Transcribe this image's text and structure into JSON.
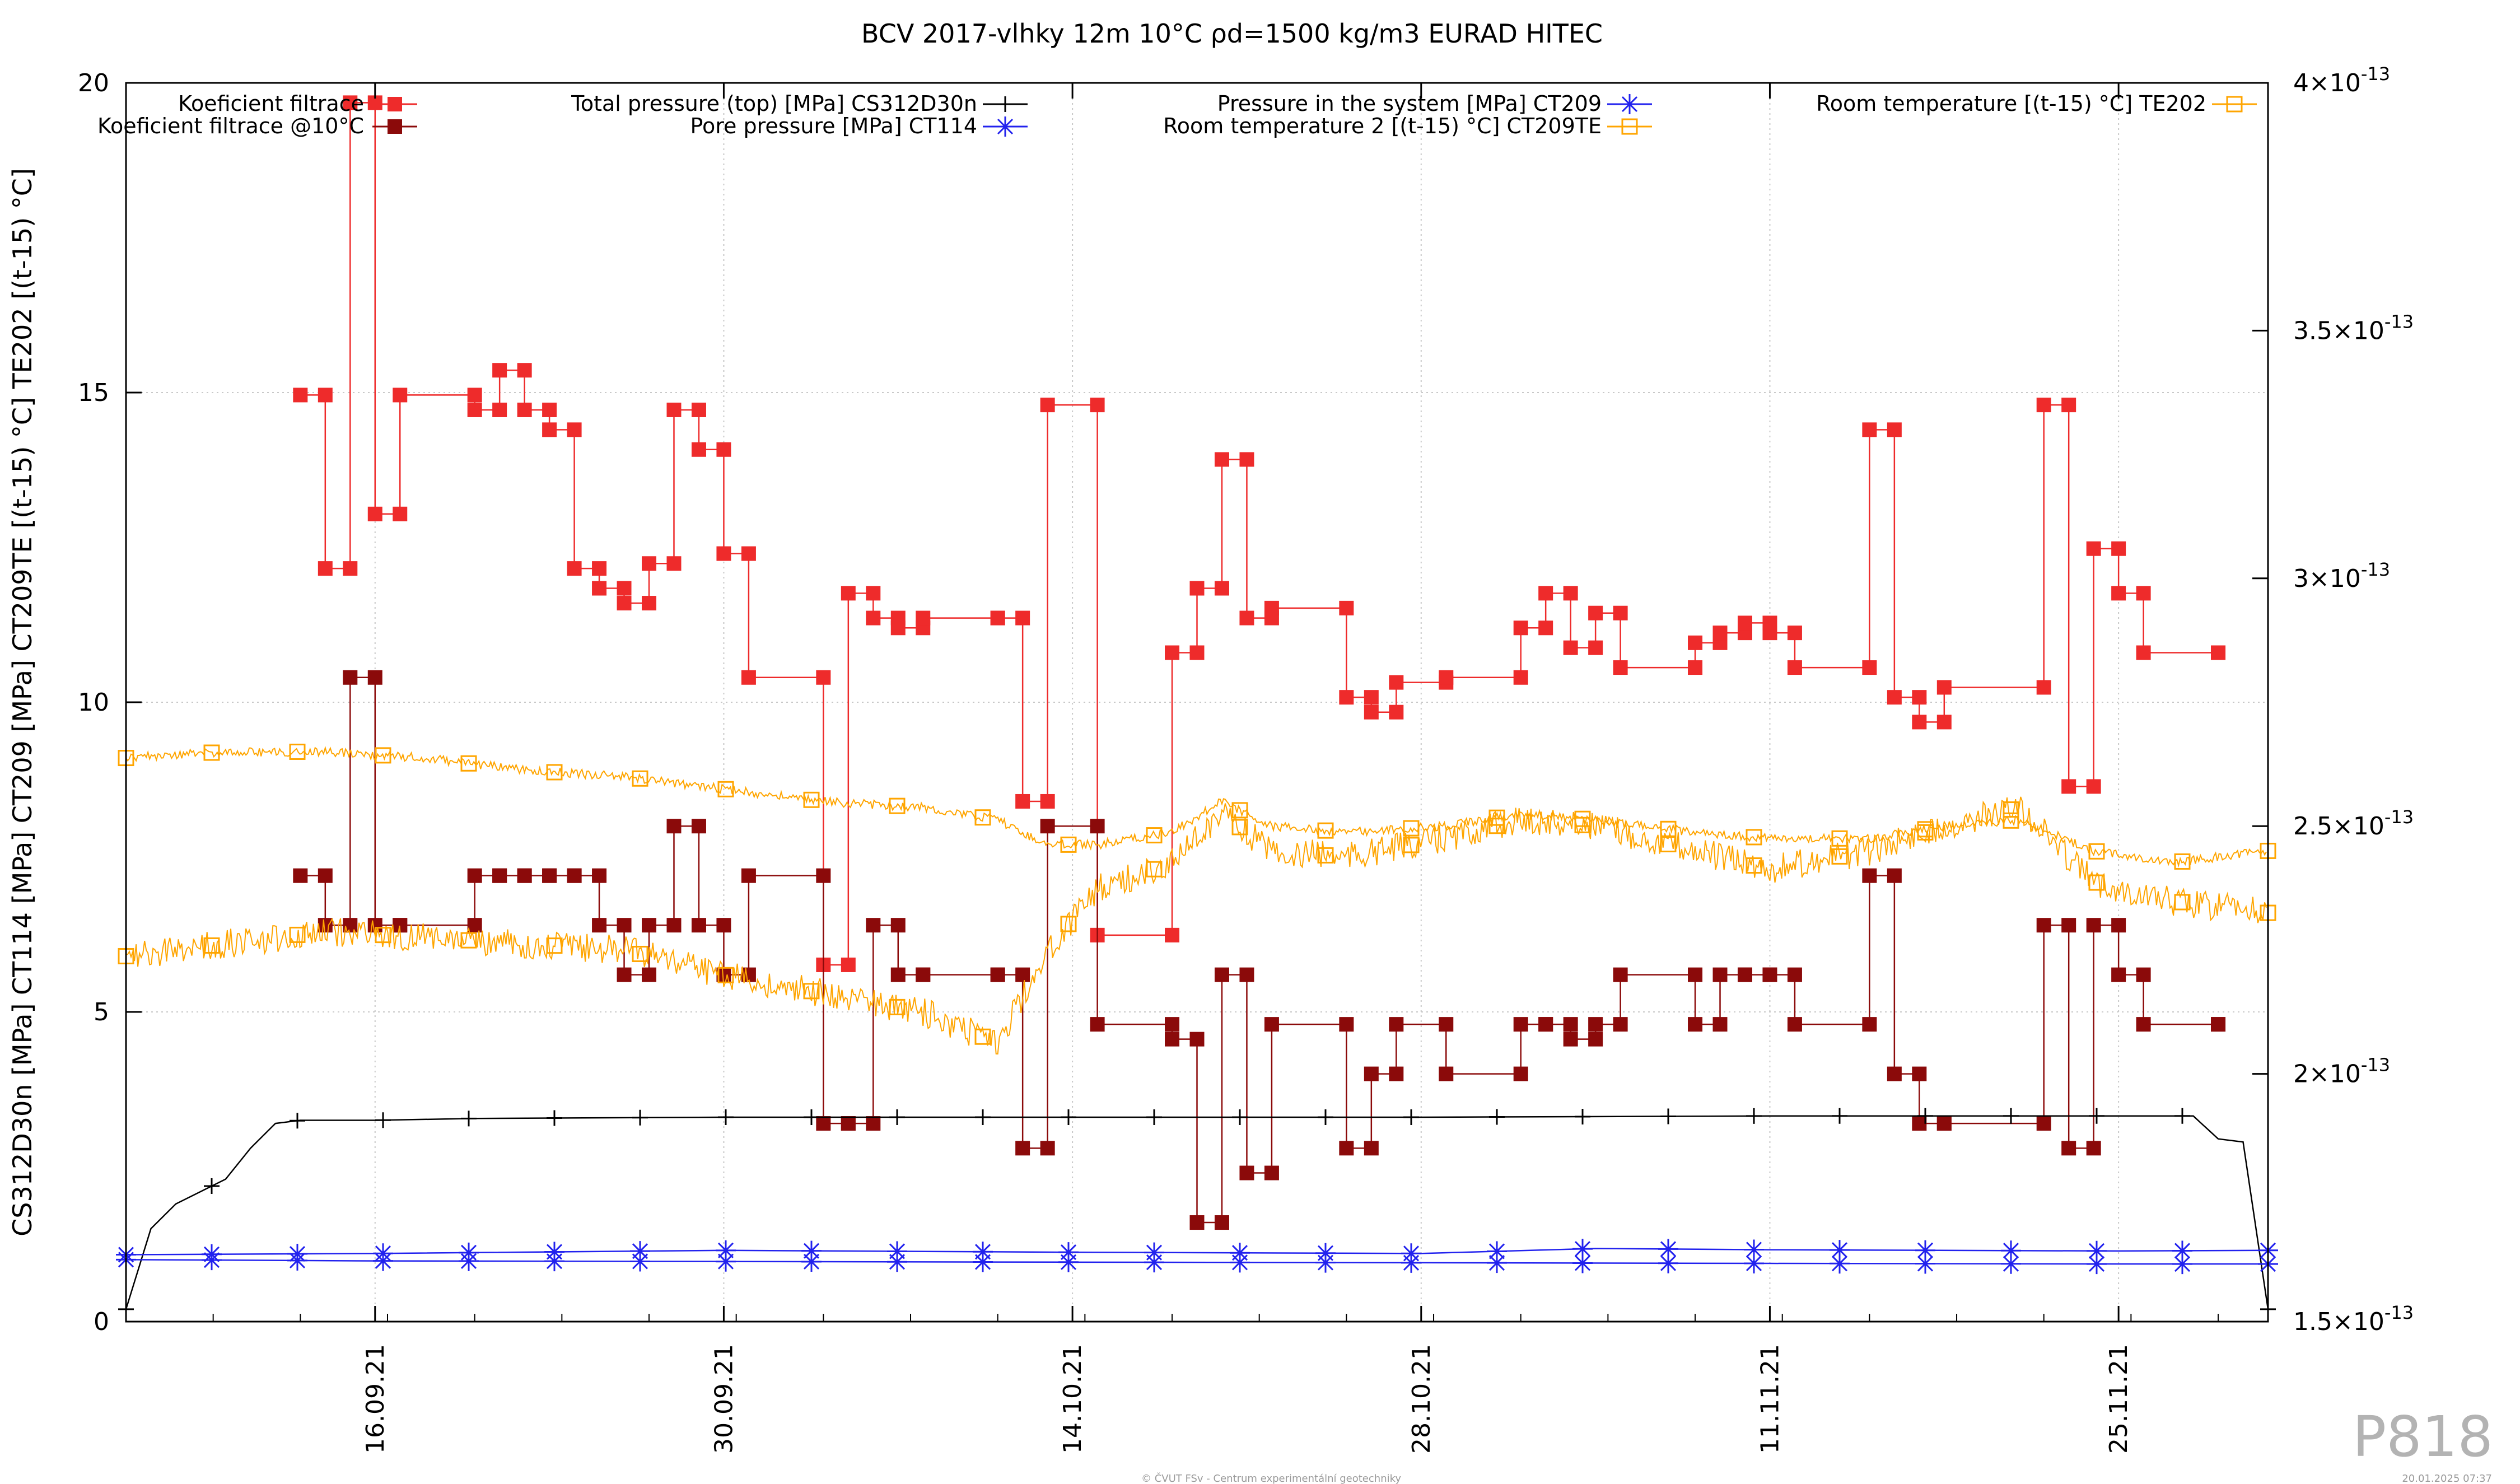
{
  "chart_data": {
    "type": "line",
    "title": "BCV 2017-vlhky 12m 10°C ρd=1500 kg/m3 EURAD HITEC",
    "ylabel_left": "CS312D30n [MPa] CT114 [MPa] CT209 [MPa] CT209TE [(t-15) °C] TE202 [(t-15) °C]",
    "ylim_left": [
      0,
      20
    ],
    "yticks_left": [
      "0",
      "5",
      "10",
      "15",
      "20"
    ],
    "ylim_right": [
      1.5e-13,
      4e-13
    ],
    "yticks_right": [
      {
        "value": 1.5e-13,
        "mant": "1.5×10",
        "exp": "-13"
      },
      {
        "value": 2e-13,
        "mant": "2×10",
        "exp": "-13"
      },
      {
        "value": 2.5e-13,
        "mant": "2.5×10",
        "exp": "-13"
      },
      {
        "value": 3e-13,
        "mant": "3×10",
        "exp": "-13"
      },
      {
        "value": 3.5e-13,
        "mant": "3.5×10",
        "exp": "-13"
      },
      {
        "value": 4e-13,
        "mant": "4×10",
        "exp": "-13"
      }
    ],
    "xlim": [
      "2021-09-06",
      "2021-12-01"
    ],
    "xticks": [
      {
        "date": "2021-09-16",
        "label": "16.09.21"
      },
      {
        "date": "2021-09-30",
        "label": "30.09.21"
      },
      {
        "date": "2021-10-14",
        "label": "14.10.21"
      },
      {
        "date": "2021-10-28",
        "label": "28.10.21"
      },
      {
        "date": "2021-11-11",
        "label": "11.11.21"
      },
      {
        "date": "2021-11-25",
        "label": "25.11.21"
      }
    ],
    "grid": true,
    "legend_position": "top",
    "series": [
      {
        "name": "Koeficient filtrace",
        "axis": "right",
        "color": "#ee2b2b",
        "marker": "filled-square",
        "x": [
          "2021-09-13",
          "2021-09-14",
          "2021-09-15",
          "2021-09-16",
          "2021-09-17",
          "2021-09-20",
          "2021-09-21",
          "2021-09-22",
          "2021-09-23",
          "2021-09-24",
          "2021-09-25",
          "2021-09-26",
          "2021-09-27",
          "2021-09-28",
          "2021-09-29",
          "2021-09-30",
          "2021-10-01",
          "2021-10-04",
          "2021-10-05",
          "2021-10-06",
          "2021-10-07",
          "2021-10-08",
          "2021-10-11",
          "2021-10-12",
          "2021-10-13",
          "2021-10-15",
          "2021-10-18",
          "2021-10-19",
          "2021-10-20",
          "2021-10-21",
          "2021-10-22",
          "2021-10-25",
          "2021-10-26",
          "2021-10-27",
          "2021-10-29",
          "2021-11-01",
          "2021-11-02",
          "2021-11-03",
          "2021-11-04",
          "2021-11-05",
          "2021-11-08",
          "2021-11-09",
          "2021-11-10",
          "2021-11-11",
          "2021-11-12",
          "2021-11-15",
          "2021-11-16",
          "2021-11-17",
          "2021-11-18",
          "2021-11-22",
          "2021-11-23",
          "2021-11-24",
          "2021-11-25",
          "2021-11-26",
          "2021-11-29"
        ],
        "y": [
          3.37e-13,
          3.02e-13,
          3.96e-13,
          3.13e-13,
          3.37e-13,
          3.34e-13,
          3.42e-13,
          3.34e-13,
          3.3e-13,
          3.02e-13,
          2.98e-13,
          2.95e-13,
          3.03e-13,
          3.34e-13,
          3.26e-13,
          3.05e-13,
          2.8e-13,
          2.22e-13,
          2.97e-13,
          2.92e-13,
          2.9e-13,
          2.92e-13,
          2.92e-13,
          2.55e-13,
          3.35e-13,
          2.28e-13,
          2.85e-13,
          2.98e-13,
          3.24e-13,
          2.92e-13,
          2.94e-13,
          2.76e-13,
          2.73e-13,
          2.79e-13,
          2.8e-13,
          2.9e-13,
          2.97e-13,
          2.86e-13,
          2.93e-13,
          2.82e-13,
          2.87e-13,
          2.89e-13,
          2.91e-13,
          2.89e-13,
          2.82e-13,
          3.3e-13,
          2.76e-13,
          2.71e-13,
          2.78e-13,
          3.35e-13,
          2.58e-13,
          3.06e-13,
          2.97e-13,
          2.85e-13,
          2.85e-13
        ]
      },
      {
        "name": "Koeficient filtrace @10°C",
        "axis": "right",
        "color": "#8b0a0a",
        "marker": "filled-square",
        "x": [
          "2021-09-13",
          "2021-09-14",
          "2021-09-15",
          "2021-09-16",
          "2021-09-17",
          "2021-09-20",
          "2021-09-21",
          "2021-09-22",
          "2021-09-23",
          "2021-09-24",
          "2021-09-25",
          "2021-09-26",
          "2021-09-27",
          "2021-09-28",
          "2021-09-29",
          "2021-09-30",
          "2021-10-01",
          "2021-10-04",
          "2021-10-05",
          "2021-10-06",
          "2021-10-07",
          "2021-10-08",
          "2021-10-11",
          "2021-10-12",
          "2021-10-13",
          "2021-10-15",
          "2021-10-18",
          "2021-10-19",
          "2021-10-20",
          "2021-10-21",
          "2021-10-22",
          "2021-10-25",
          "2021-10-26",
          "2021-10-27",
          "2021-10-29",
          "2021-11-01",
          "2021-11-02",
          "2021-11-03",
          "2021-11-04",
          "2021-11-05",
          "2021-11-08",
          "2021-11-09",
          "2021-11-10",
          "2021-11-11",
          "2021-11-12",
          "2021-11-15",
          "2021-11-16",
          "2021-11-17",
          "2021-11-18",
          "2021-11-22",
          "2021-11-23",
          "2021-11-24",
          "2021-11-25",
          "2021-11-26",
          "2021-11-29"
        ],
        "y": [
          2.4e-13,
          2.3e-13,
          2.8e-13,
          2.3e-13,
          2.3e-13,
          2.4e-13,
          2.4e-13,
          2.4e-13,
          2.4e-13,
          2.4e-13,
          2.3e-13,
          2.2e-13,
          2.3e-13,
          2.5e-13,
          2.3e-13,
          2.2e-13,
          2.4e-13,
          1.9e-13,
          1.9e-13,
          2.3e-13,
          2.2e-13,
          2.2e-13,
          2.2e-13,
          1.85e-13,
          2.5e-13,
          2.1e-13,
          2.07e-13,
          1.7e-13,
          2.2e-13,
          1.8e-13,
          2.1e-13,
          1.85e-13,
          2e-13,
          2.1e-13,
          2e-13,
          2.1e-13,
          2.1e-13,
          2.07e-13,
          2.1e-13,
          2.2e-13,
          2.1e-13,
          2.2e-13,
          2.2e-13,
          2.2e-13,
          2.1e-13,
          2.4e-13,
          2e-13,
          1.9e-13,
          1.9e-13,
          2.3e-13,
          1.85e-13,
          2.3e-13,
          2.2e-13,
          2.1e-13,
          2.1e-13
        ]
      },
      {
        "name": "Total pressure (top) [MPa] CS312D30n",
        "axis": "left",
        "color": "#000000",
        "marker": "plus",
        "x": [
          "2021-09-06",
          "2021-09-07",
          "2021-09-08",
          "2021-09-09",
          "2021-09-10",
          "2021-09-11",
          "2021-09-12",
          "2021-09-13",
          "2021-09-14",
          "2021-09-16",
          "2021-09-20",
          "2021-09-30",
          "2021-10-14",
          "2021-10-28",
          "2021-11-11",
          "2021-11-25",
          "2021-11-28",
          "2021-11-29",
          "2021-11-30",
          "2021-12-01"
        ],
        "y": [
          0.2,
          1.5,
          1.9,
          2.1,
          2.3,
          2.8,
          3.2,
          3.25,
          3.25,
          3.25,
          3.28,
          3.3,
          3.3,
          3.3,
          3.32,
          3.32,
          3.32,
          2.95,
          2.9,
          0.2
        ]
      },
      {
        "name": "Pore pressure [MPa] CT114",
        "axis": "left",
        "color": "#2222ee",
        "marker": "star",
        "x": [
          "2021-09-06",
          "2021-09-16",
          "2021-09-30",
          "2021-10-14",
          "2021-10-28",
          "2021-11-11",
          "2021-11-25",
          "2021-12-01"
        ],
        "y": [
          1.0,
          0.98,
          0.97,
          0.96,
          0.95,
          0.94,
          0.93,
          0.93
        ]
      },
      {
        "name": "Pressure in the system [MPa] CT209",
        "axis": "left",
        "color": "#2222ee",
        "marker": "star",
        "x": [
          "2021-09-06",
          "2021-09-16",
          "2021-09-30",
          "2021-10-14",
          "2021-10-28",
          "2021-11-04",
          "2021-11-11",
          "2021-11-25",
          "2021-12-01"
        ],
        "y": [
          1.08,
          1.1,
          1.15,
          1.12,
          1.1,
          1.18,
          1.16,
          1.14,
          1.15
        ]
      },
      {
        "name": "Room temperature 2 [(t-15) °C] CT209TE",
        "axis": "left",
        "color": "#ffa500",
        "marker": "open-square",
        "x": [
          "2021-09-06",
          "2021-09-10",
          "2021-09-14",
          "2021-09-18",
          "2021-09-22",
          "2021-09-26",
          "2021-09-30",
          "2021-10-04",
          "2021-10-08",
          "2021-10-11",
          "2021-10-13",
          "2021-10-15",
          "2021-10-18",
          "2021-10-20",
          "2021-10-22",
          "2021-10-25",
          "2021-10-29",
          "2021-11-01",
          "2021-11-04",
          "2021-11-08",
          "2021-11-11",
          "2021-11-15",
          "2021-11-18",
          "2021-11-21",
          "2021-11-24",
          "2021-11-27",
          "2021-12-01"
        ],
        "y": [
          5.9,
          6.1,
          6.3,
          6.2,
          6.1,
          6.0,
          5.6,
          5.3,
          5.0,
          4.5,
          6.0,
          7.0,
          7.4,
          8.2,
          7.6,
          7.5,
          7.8,
          8.1,
          8.0,
          7.6,
          7.3,
          7.6,
          8.0,
          8.3,
          7.1,
          6.8,
          6.6
        ]
      },
      {
        "name": "Room temperature [(t-15) °C] TE202",
        "axis": "left",
        "color": "#ffa500",
        "marker": "open-square",
        "x": [
          "2021-09-06",
          "2021-09-10",
          "2021-09-14",
          "2021-09-18",
          "2021-09-22",
          "2021-09-26",
          "2021-09-30",
          "2021-10-04",
          "2021-10-08",
          "2021-10-11",
          "2021-10-13",
          "2021-10-15",
          "2021-10-18",
          "2021-10-20",
          "2021-10-22",
          "2021-10-25",
          "2021-10-29",
          "2021-11-01",
          "2021-11-04",
          "2021-11-08",
          "2021-11-11",
          "2021-11-15",
          "2021-11-18",
          "2021-11-21",
          "2021-11-24",
          "2021-11-27",
          "2021-12-01"
        ],
        "y": [
          9.1,
          9.2,
          9.2,
          9.1,
          8.9,
          8.8,
          8.6,
          8.4,
          8.3,
          8.1,
          7.7,
          7.7,
          7.9,
          8.4,
          8.0,
          7.9,
          8.0,
          8.2,
          8.1,
          7.9,
          7.8,
          7.8,
          8.0,
          8.1,
          7.6,
          7.4,
          7.6
        ]
      }
    ]
  },
  "corner_label": "P818",
  "footer_left": "© ČVUT FSv - Centrum experimentální geotechniky",
  "footer_right": "20.01.2025 07:37",
  "colors": {
    "grid": "#c8c8c8",
    "frame": "#000000"
  }
}
